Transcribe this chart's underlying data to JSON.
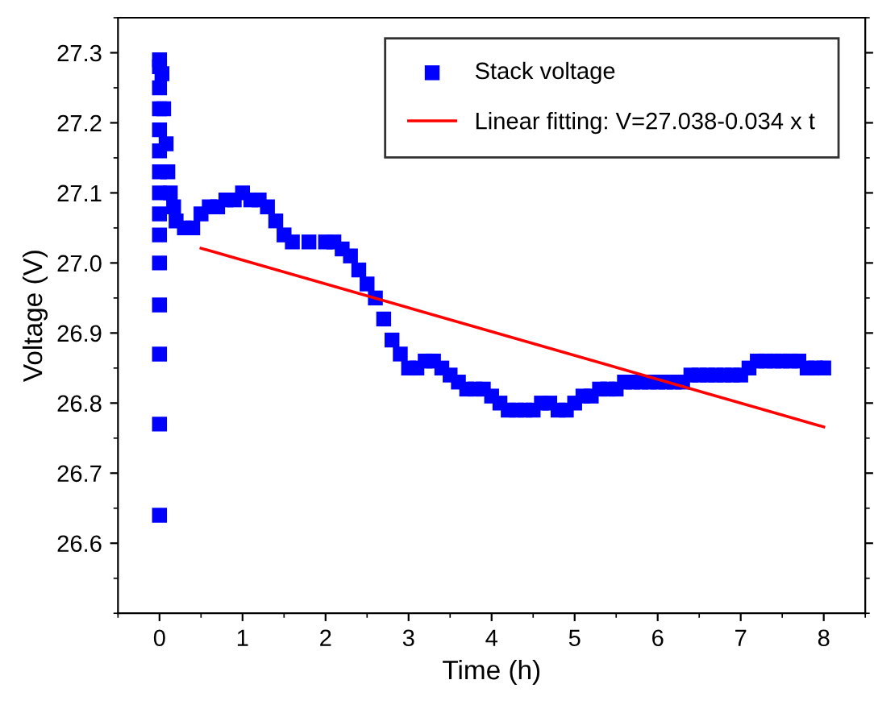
{
  "chart_data": {
    "type": "scatter",
    "xlabel": "Time (h)",
    "ylabel": "Voltage (V)",
    "xlim": [
      -0.5,
      8.5
    ],
    "ylim": [
      26.5,
      27.35
    ],
    "xticks": [
      0,
      1,
      2,
      3,
      4,
      5,
      6,
      7,
      8
    ],
    "yticks": [
      {
        "value": 26.6,
        "label": "26.6"
      },
      {
        "value": 26.7,
        "label": "26.7"
      },
      {
        "value": 26.8,
        "label": "26.8"
      },
      {
        "value": 26.9,
        "label": "26.9"
      },
      {
        "value": 27.0,
        "label": "27.0"
      },
      {
        "value": 27.1,
        "label": "27.1"
      },
      {
        "value": 27.2,
        "label": "27.2"
      },
      {
        "value": 27.3,
        "label": "27.3"
      }
    ],
    "grid": false,
    "legend": "top right",
    "series": [
      {
        "name": "Stack voltage",
        "color": "#0000ff",
        "marker": "square",
        "x": [
          0,
          0,
          0,
          0,
          0,
          0,
          0,
          0,
          0,
          0,
          0,
          0,
          0,
          0,
          0,
          0.03,
          0.05,
          0.08,
          0.1,
          0.13,
          0.17,
          0.2,
          0.3,
          0.4,
          0.5,
          0.6,
          0.7,
          0.8,
          0.9,
          1.0,
          1.1,
          1.2,
          1.3,
          1.4,
          1.5,
          1.6,
          1.8,
          2.0,
          2.1,
          2.2,
          2.3,
          2.4,
          2.5,
          2.6,
          2.7,
          2.8,
          2.9,
          3.0,
          3.1,
          3.2,
          3.3,
          3.4,
          3.5,
          3.6,
          3.7,
          3.8,
          3.9,
          4.0,
          4.1,
          4.2,
          4.3,
          4.4,
          4.5,
          4.6,
          4.7,
          4.8,
          4.9,
          5.0,
          5.1,
          5.2,
          5.3,
          5.4,
          5.5,
          5.6,
          5.7,
          5.8,
          5.9,
          6.0,
          6.1,
          6.2,
          6.3,
          6.4,
          6.5,
          6.6,
          6.7,
          6.8,
          6.9,
          7.0,
          7.1,
          7.2,
          7.3,
          7.4,
          7.5,
          7.6,
          7.7,
          7.8,
          7.9,
          8.0
        ],
        "values": [
          26.64,
          26.77,
          26.87,
          26.94,
          27.0,
          27.04,
          27.07,
          27.1,
          27.13,
          27.16,
          27.19,
          27.22,
          27.25,
          27.28,
          27.29,
          27.27,
          27.22,
          27.17,
          27.13,
          27.1,
          27.08,
          27.06,
          27.05,
          27.05,
          27.07,
          27.08,
          27.08,
          27.09,
          27.09,
          27.1,
          27.09,
          27.09,
          27.08,
          27.06,
          27.04,
          27.03,
          27.03,
          27.03,
          27.03,
          27.02,
          27.01,
          26.99,
          26.97,
          26.95,
          26.92,
          26.89,
          26.87,
          26.85,
          26.85,
          26.86,
          26.86,
          26.85,
          26.84,
          26.83,
          26.82,
          26.82,
          26.82,
          26.81,
          26.8,
          26.79,
          26.79,
          26.79,
          26.79,
          26.8,
          26.8,
          26.79,
          26.79,
          26.8,
          26.81,
          26.81,
          26.82,
          26.82,
          26.82,
          26.83,
          26.83,
          26.83,
          26.83,
          26.83,
          26.83,
          26.83,
          26.83,
          26.84,
          26.84,
          26.84,
          26.84,
          26.84,
          26.84,
          26.84,
          26.85,
          26.86,
          26.86,
          26.86,
          26.86,
          26.86,
          26.86,
          26.85,
          26.85,
          26.85
        ]
      },
      {
        "name": "Linear fitting: V=27.038-0.034 x t",
        "type": "line",
        "color": "#ff0000",
        "line_style": "solid",
        "x": [
          0.5,
          8
        ],
        "values": [
          27.021,
          26.766
        ]
      }
    ]
  }
}
